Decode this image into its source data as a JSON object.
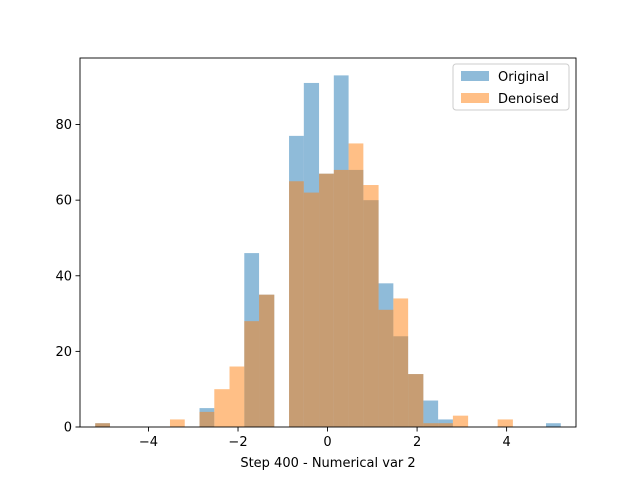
{
  "chart_data": {
    "type": "bar",
    "subtype": "overlaid-histogram",
    "xlabel": "Step 400 - Numerical var 2",
    "ylabel": "",
    "xlim": [
      -5.53,
      5.55
    ],
    "ylim": [
      0,
      97.6
    ],
    "x_ticks": [
      -4,
      -2,
      0,
      2,
      4
    ],
    "x_tick_labels": [
      "−4",
      "−2",
      "0",
      "2",
      "4"
    ],
    "y_ticks": [
      0,
      20,
      40,
      60,
      80
    ],
    "y_tick_labels": [
      "0",
      "20",
      "40",
      "60",
      "80"
    ],
    "grid": false,
    "legend_position": "top-right",
    "series": [
      {
        "name": "Original",
        "color": "#1f77b4",
        "alpha": 0.5,
        "bins": [
          {
            "x0": -5.19,
            "x1": -4.86,
            "value": 1
          },
          {
            "x0": -2.86,
            "x1": -2.53,
            "value": 5
          },
          {
            "x0": -1.86,
            "x1": -1.53,
            "value": 46
          },
          {
            "x0": -1.53,
            "x1": -1.19,
            "value": 35
          },
          {
            "x0": -0.86,
            "x1": -0.53,
            "value": 77
          },
          {
            "x0": -0.53,
            "x1": -0.19,
            "value": 91
          },
          {
            "x0": -0.19,
            "x1": 0.14,
            "value": 67
          },
          {
            "x0": 0.14,
            "x1": 0.47,
            "value": 93
          },
          {
            "x0": 0.47,
            "x1": 0.8,
            "value": 68
          },
          {
            "x0": 0.8,
            "x1": 1.14,
            "value": 60
          },
          {
            "x0": 1.14,
            "x1": 1.47,
            "value": 38
          },
          {
            "x0": 1.47,
            "x1": 1.8,
            "value": 24
          },
          {
            "x0": 1.8,
            "x1": 2.14,
            "value": 14
          },
          {
            "x0": 2.14,
            "x1": 2.47,
            "value": 7
          },
          {
            "x0": 2.47,
            "x1": 2.8,
            "value": 2
          },
          {
            "x0": 4.88,
            "x1": 5.21,
            "value": 1
          }
        ]
      },
      {
        "name": "Denoised",
        "color": "#ff7f0e",
        "alpha": 0.5,
        "bins": [
          {
            "x0": -5.19,
            "x1": -4.86,
            "value": 1
          },
          {
            "x0": -3.52,
            "x1": -3.19,
            "value": 2
          },
          {
            "x0": -2.86,
            "x1": -2.53,
            "value": 4
          },
          {
            "x0": -2.53,
            "x1": -2.19,
            "value": 10
          },
          {
            "x0": -2.19,
            "x1": -1.86,
            "value": 16
          },
          {
            "x0": -1.86,
            "x1": -1.53,
            "value": 28
          },
          {
            "x0": -1.53,
            "x1": -1.19,
            "value": 35
          },
          {
            "x0": -0.86,
            "x1": -0.53,
            "value": 65
          },
          {
            "x0": -0.53,
            "x1": -0.19,
            "value": 62
          },
          {
            "x0": -0.19,
            "x1": 0.14,
            "value": 67
          },
          {
            "x0": 0.14,
            "x1": 0.47,
            "value": 68
          },
          {
            "x0": 0.47,
            "x1": 0.8,
            "value": 75
          },
          {
            "x0": 0.8,
            "x1": 1.14,
            "value": 64
          },
          {
            "x0": 1.14,
            "x1": 1.47,
            "value": 31
          },
          {
            "x0": 1.47,
            "x1": 1.8,
            "value": 34
          },
          {
            "x0": 1.8,
            "x1": 2.14,
            "value": 14
          },
          {
            "x0": 2.14,
            "x1": 2.47,
            "value": 1
          },
          {
            "x0": 2.47,
            "x1": 2.8,
            "value": 1
          },
          {
            "x0": 2.8,
            "x1": 3.14,
            "value": 3
          },
          {
            "x0": 3.8,
            "x1": 4.14,
            "value": 2
          }
        ]
      }
    ]
  }
}
